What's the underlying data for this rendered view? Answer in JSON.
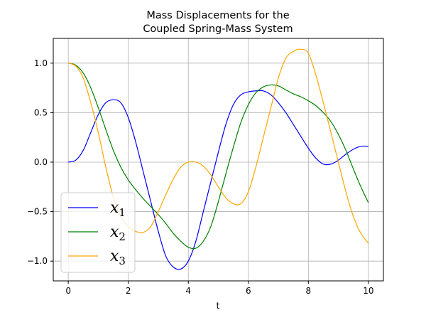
{
  "chart_data": {
    "type": "line",
    "title": [
      "Mass Displacements for the",
      "Coupled Spring-Mass System"
    ],
    "xlabel": "t",
    "ylabel": "",
    "xlim": [
      -0.5,
      10.5
    ],
    "ylim": [
      -1.2,
      1.25
    ],
    "xticks": [
      0,
      2,
      4,
      6,
      8,
      10
    ],
    "yticks": [
      -1.0,
      -0.5,
      0.0,
      0.5,
      1.0
    ],
    "xtick_labels": [
      "0",
      "2",
      "4",
      "6",
      "8",
      "10"
    ],
    "ytick_labels": [
      "−1.0",
      "−0.5",
      "0.0",
      "0.5",
      "1.0"
    ],
    "grid": true,
    "legend_position": "lower-left",
    "series": [
      {
        "name": "x1",
        "label_base": "x",
        "label_sub": "1",
        "color": "#0000ff",
        "x": [
          0,
          0.25,
          0.5,
          0.75,
          1.0,
          1.25,
          1.5,
          1.75,
          2.0,
          2.25,
          2.5,
          2.75,
          3.0,
          3.25,
          3.5,
          3.75,
          4.0,
          4.25,
          4.5,
          4.75,
          5.0,
          5.25,
          5.5,
          5.75,
          6.0,
          6.25,
          6.5,
          6.75,
          7.0,
          7.25,
          7.5,
          7.75,
          8.0,
          8.25,
          8.5,
          8.75,
          9.0,
          9.25,
          9.5,
          9.75,
          10.0
        ],
        "y": [
          0.0,
          0.02,
          0.12,
          0.3,
          0.48,
          0.6,
          0.63,
          0.6,
          0.45,
          0.2,
          -0.1,
          -0.4,
          -0.7,
          -0.95,
          -1.06,
          -1.08,
          -1.0,
          -0.8,
          -0.5,
          -0.2,
          0.1,
          0.38,
          0.58,
          0.68,
          0.71,
          0.72,
          0.72,
          0.68,
          0.6,
          0.5,
          0.38,
          0.26,
          0.14,
          0.04,
          -0.02,
          -0.02,
          0.02,
          0.08,
          0.13,
          0.16,
          0.16
        ]
      },
      {
        "name": "x2",
        "label_base": "x",
        "label_sub": "2",
        "color": "#008000",
        "x": [
          0,
          0.25,
          0.5,
          0.75,
          1.0,
          1.25,
          1.5,
          1.75,
          2.0,
          2.25,
          2.5,
          2.75,
          3.0,
          3.25,
          3.5,
          3.75,
          4.0,
          4.25,
          4.5,
          4.75,
          5.0,
          5.25,
          5.5,
          5.75,
          6.0,
          6.25,
          6.5,
          6.75,
          7.0,
          7.25,
          7.5,
          7.75,
          8.0,
          8.25,
          8.5,
          8.75,
          9.0,
          9.25,
          9.5,
          9.75,
          10.0
        ],
        "y": [
          1.0,
          0.98,
          0.9,
          0.75,
          0.55,
          0.33,
          0.12,
          -0.05,
          -0.18,
          -0.28,
          -0.37,
          -0.45,
          -0.53,
          -0.62,
          -0.72,
          -0.8,
          -0.86,
          -0.87,
          -0.8,
          -0.65,
          -0.4,
          -0.12,
          0.15,
          0.4,
          0.58,
          0.7,
          0.76,
          0.78,
          0.77,
          0.73,
          0.69,
          0.66,
          0.62,
          0.57,
          0.5,
          0.41,
          0.28,
          0.12,
          -0.07,
          -0.25,
          -0.41
        ]
      },
      {
        "name": "x3",
        "label_base": "x",
        "label_sub": "3",
        "color": "#ffa500",
        "x": [
          0,
          0.25,
          0.5,
          0.75,
          1.0,
          1.25,
          1.5,
          1.75,
          2.0,
          2.25,
          2.5,
          2.75,
          3.0,
          3.25,
          3.5,
          3.75,
          4.0,
          4.25,
          4.5,
          4.75,
          5.0,
          5.25,
          5.5,
          5.75,
          6.0,
          6.25,
          6.5,
          6.75,
          7.0,
          7.25,
          7.5,
          7.75,
          8.0,
          8.25,
          8.5,
          8.75,
          9.0,
          9.25,
          9.5,
          9.75,
          10.0
        ],
        "y": [
          1.0,
          0.97,
          0.85,
          0.6,
          0.3,
          -0.05,
          -0.35,
          -0.55,
          -0.65,
          -0.7,
          -0.71,
          -0.65,
          -0.5,
          -0.33,
          -0.17,
          -0.05,
          0.0,
          0.0,
          -0.04,
          -0.13,
          -0.25,
          -0.36,
          -0.42,
          -0.42,
          -0.3,
          -0.05,
          0.25,
          0.55,
          0.85,
          1.05,
          1.12,
          1.14,
          1.1,
          0.88,
          0.6,
          0.3,
          0.0,
          -0.3,
          -0.55,
          -0.72,
          -0.82
        ]
      }
    ]
  }
}
